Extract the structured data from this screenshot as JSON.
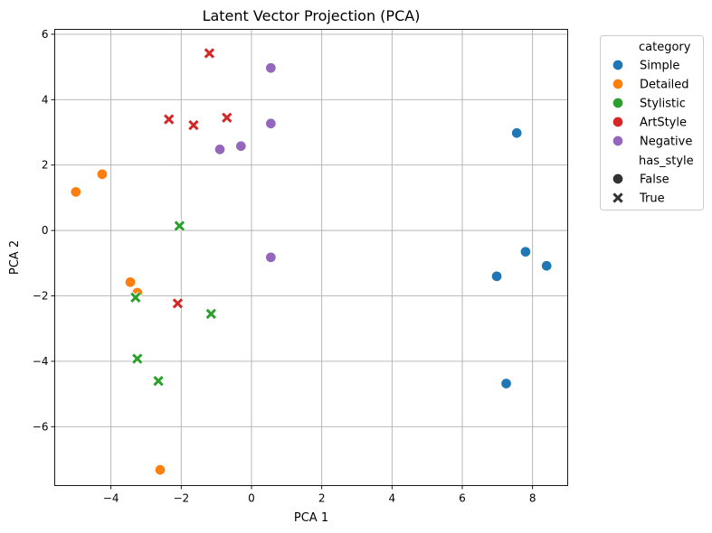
{
  "chart_data": {
    "type": "scatter",
    "title": "Latent Vector Projection (PCA)",
    "xlabel": "PCA 1",
    "ylabel": "PCA 2",
    "xlim": [
      -5.6,
      9.0
    ],
    "ylim": [
      -7.8,
      6.15
    ],
    "xticks": [
      -4,
      -2,
      0,
      2,
      4,
      6,
      8
    ],
    "yticks": [
      -6,
      -4,
      -2,
      0,
      2,
      4,
      6
    ],
    "grid": true,
    "legend_position": "outside-top-right",
    "legend": {
      "hue_title": "category",
      "style_title": "has_style",
      "style_entries": [
        {
          "label": "False",
          "marker": "circle"
        },
        {
          "label": "True",
          "marker": "x"
        }
      ]
    },
    "series": [
      {
        "name": "Simple",
        "color": "#1f77b4",
        "points": [
          {
            "x": 7.55,
            "y": 2.98,
            "has_style": false
          },
          {
            "x": 7.8,
            "y": -0.65,
            "has_style": false
          },
          {
            "x": 8.4,
            "y": -1.08,
            "has_style": false
          },
          {
            "x": 6.98,
            "y": -1.4,
            "has_style": false
          },
          {
            "x": 7.25,
            "y": -4.68,
            "has_style": false
          }
        ]
      },
      {
        "name": "Detailed",
        "color": "#ff7f0e",
        "points": [
          {
            "x": -4.25,
            "y": 1.72,
            "has_style": false
          },
          {
            "x": -5.0,
            "y": 1.18,
            "has_style": false
          },
          {
            "x": -3.45,
            "y": -1.58,
            "has_style": false
          },
          {
            "x": -3.25,
            "y": -1.9,
            "has_style": false
          },
          {
            "x": -2.6,
            "y": -7.32,
            "has_style": false
          }
        ]
      },
      {
        "name": "Stylistic",
        "color": "#2ca02c",
        "points": [
          {
            "x": -2.05,
            "y": 0.14,
            "has_style": true
          },
          {
            "x": -3.3,
            "y": -2.05,
            "has_style": true
          },
          {
            "x": -1.15,
            "y": -2.55,
            "has_style": true
          },
          {
            "x": -3.25,
            "y": -3.92,
            "has_style": true
          },
          {
            "x": -2.65,
            "y": -4.6,
            "has_style": true
          }
        ]
      },
      {
        "name": "ArtStyle",
        "color": "#d62728",
        "points": [
          {
            "x": -1.2,
            "y": 5.42,
            "has_style": true
          },
          {
            "x": -2.35,
            "y": 3.4,
            "has_style": true
          },
          {
            "x": -0.7,
            "y": 3.45,
            "has_style": true
          },
          {
            "x": -1.65,
            "y": 3.22,
            "has_style": true
          },
          {
            "x": -2.1,
            "y": -2.23,
            "has_style": true
          }
        ]
      },
      {
        "name": "Negative",
        "color": "#9467bd",
        "points": [
          {
            "x": 0.55,
            "y": 4.97,
            "has_style": false
          },
          {
            "x": 0.55,
            "y": 3.27,
            "has_style": false
          },
          {
            "x": -0.3,
            "y": 2.58,
            "has_style": false
          },
          {
            "x": -0.9,
            "y": 2.48,
            "has_style": false
          },
          {
            "x": 0.55,
            "y": -0.82,
            "has_style": false
          }
        ]
      }
    ]
  }
}
